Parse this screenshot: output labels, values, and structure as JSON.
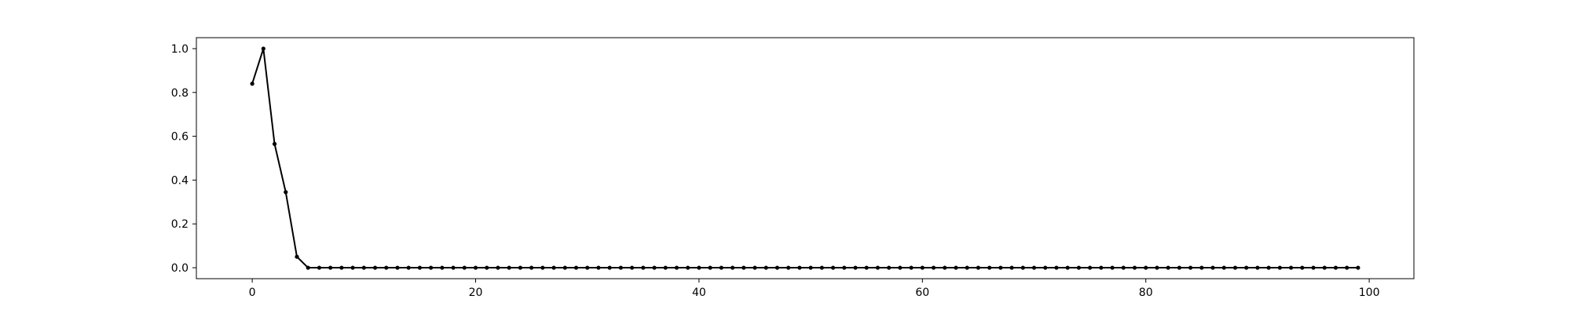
{
  "chart_data": {
    "type": "line",
    "title": "",
    "xlabel": "",
    "ylabel": "",
    "xlim": [
      -5,
      104
    ],
    "ylim": [
      -0.05,
      1.05
    ],
    "x_ticks": [
      0,
      20,
      40,
      60,
      80,
      100
    ],
    "x_tick_labels": [
      "0",
      "20",
      "40",
      "60",
      "80",
      "100"
    ],
    "y_ticks": [
      0.0,
      0.2,
      0.4,
      0.6,
      0.8,
      1.0
    ],
    "y_tick_labels": [
      "0.0",
      "0.2",
      "0.4",
      "0.6",
      "0.8",
      "1.0"
    ],
    "grid": false,
    "legend": "none",
    "series": [
      {
        "color": "#000000",
        "marker": "dot",
        "x": [
          0,
          1,
          2,
          3,
          4,
          5,
          6,
          7,
          8,
          9,
          10,
          11,
          12,
          13,
          14,
          15,
          16,
          17,
          18,
          19,
          20,
          21,
          22,
          23,
          24,
          25,
          26,
          27,
          28,
          29,
          30,
          31,
          32,
          33,
          34,
          35,
          36,
          37,
          38,
          39,
          40,
          41,
          42,
          43,
          44,
          45,
          46,
          47,
          48,
          49,
          50,
          51,
          52,
          53,
          54,
          55,
          56,
          57,
          58,
          59,
          60,
          61,
          62,
          63,
          64,
          65,
          66,
          67,
          68,
          69,
          70,
          71,
          72,
          73,
          74,
          75,
          76,
          77,
          78,
          79,
          80,
          81,
          82,
          83,
          84,
          85,
          86,
          87,
          88,
          89,
          90,
          91,
          92,
          93,
          94,
          95,
          96,
          97,
          98,
          99
        ],
        "values": [
          0.84,
          1.0,
          0.565,
          0.345,
          0.05,
          0,
          0,
          0,
          0,
          0,
          0,
          0,
          0,
          0,
          0,
          0,
          0,
          0,
          0,
          0,
          0,
          0,
          0,
          0,
          0,
          0,
          0,
          0,
          0,
          0,
          0,
          0,
          0,
          0,
          0,
          0,
          0,
          0,
          0,
          0,
          0,
          0,
          0,
          0,
          0,
          0,
          0,
          0,
          0,
          0,
          0,
          0,
          0,
          0,
          0,
          0,
          0,
          0,
          0,
          0,
          0,
          0,
          0,
          0,
          0,
          0,
          0,
          0,
          0,
          0,
          0,
          0,
          0,
          0,
          0,
          0,
          0,
          0,
          0,
          0,
          0,
          0,
          0,
          0,
          0,
          0,
          0,
          0,
          0,
          0,
          0,
          0,
          0,
          0,
          0,
          0,
          0,
          0,
          0,
          0
        ]
      }
    ]
  }
}
